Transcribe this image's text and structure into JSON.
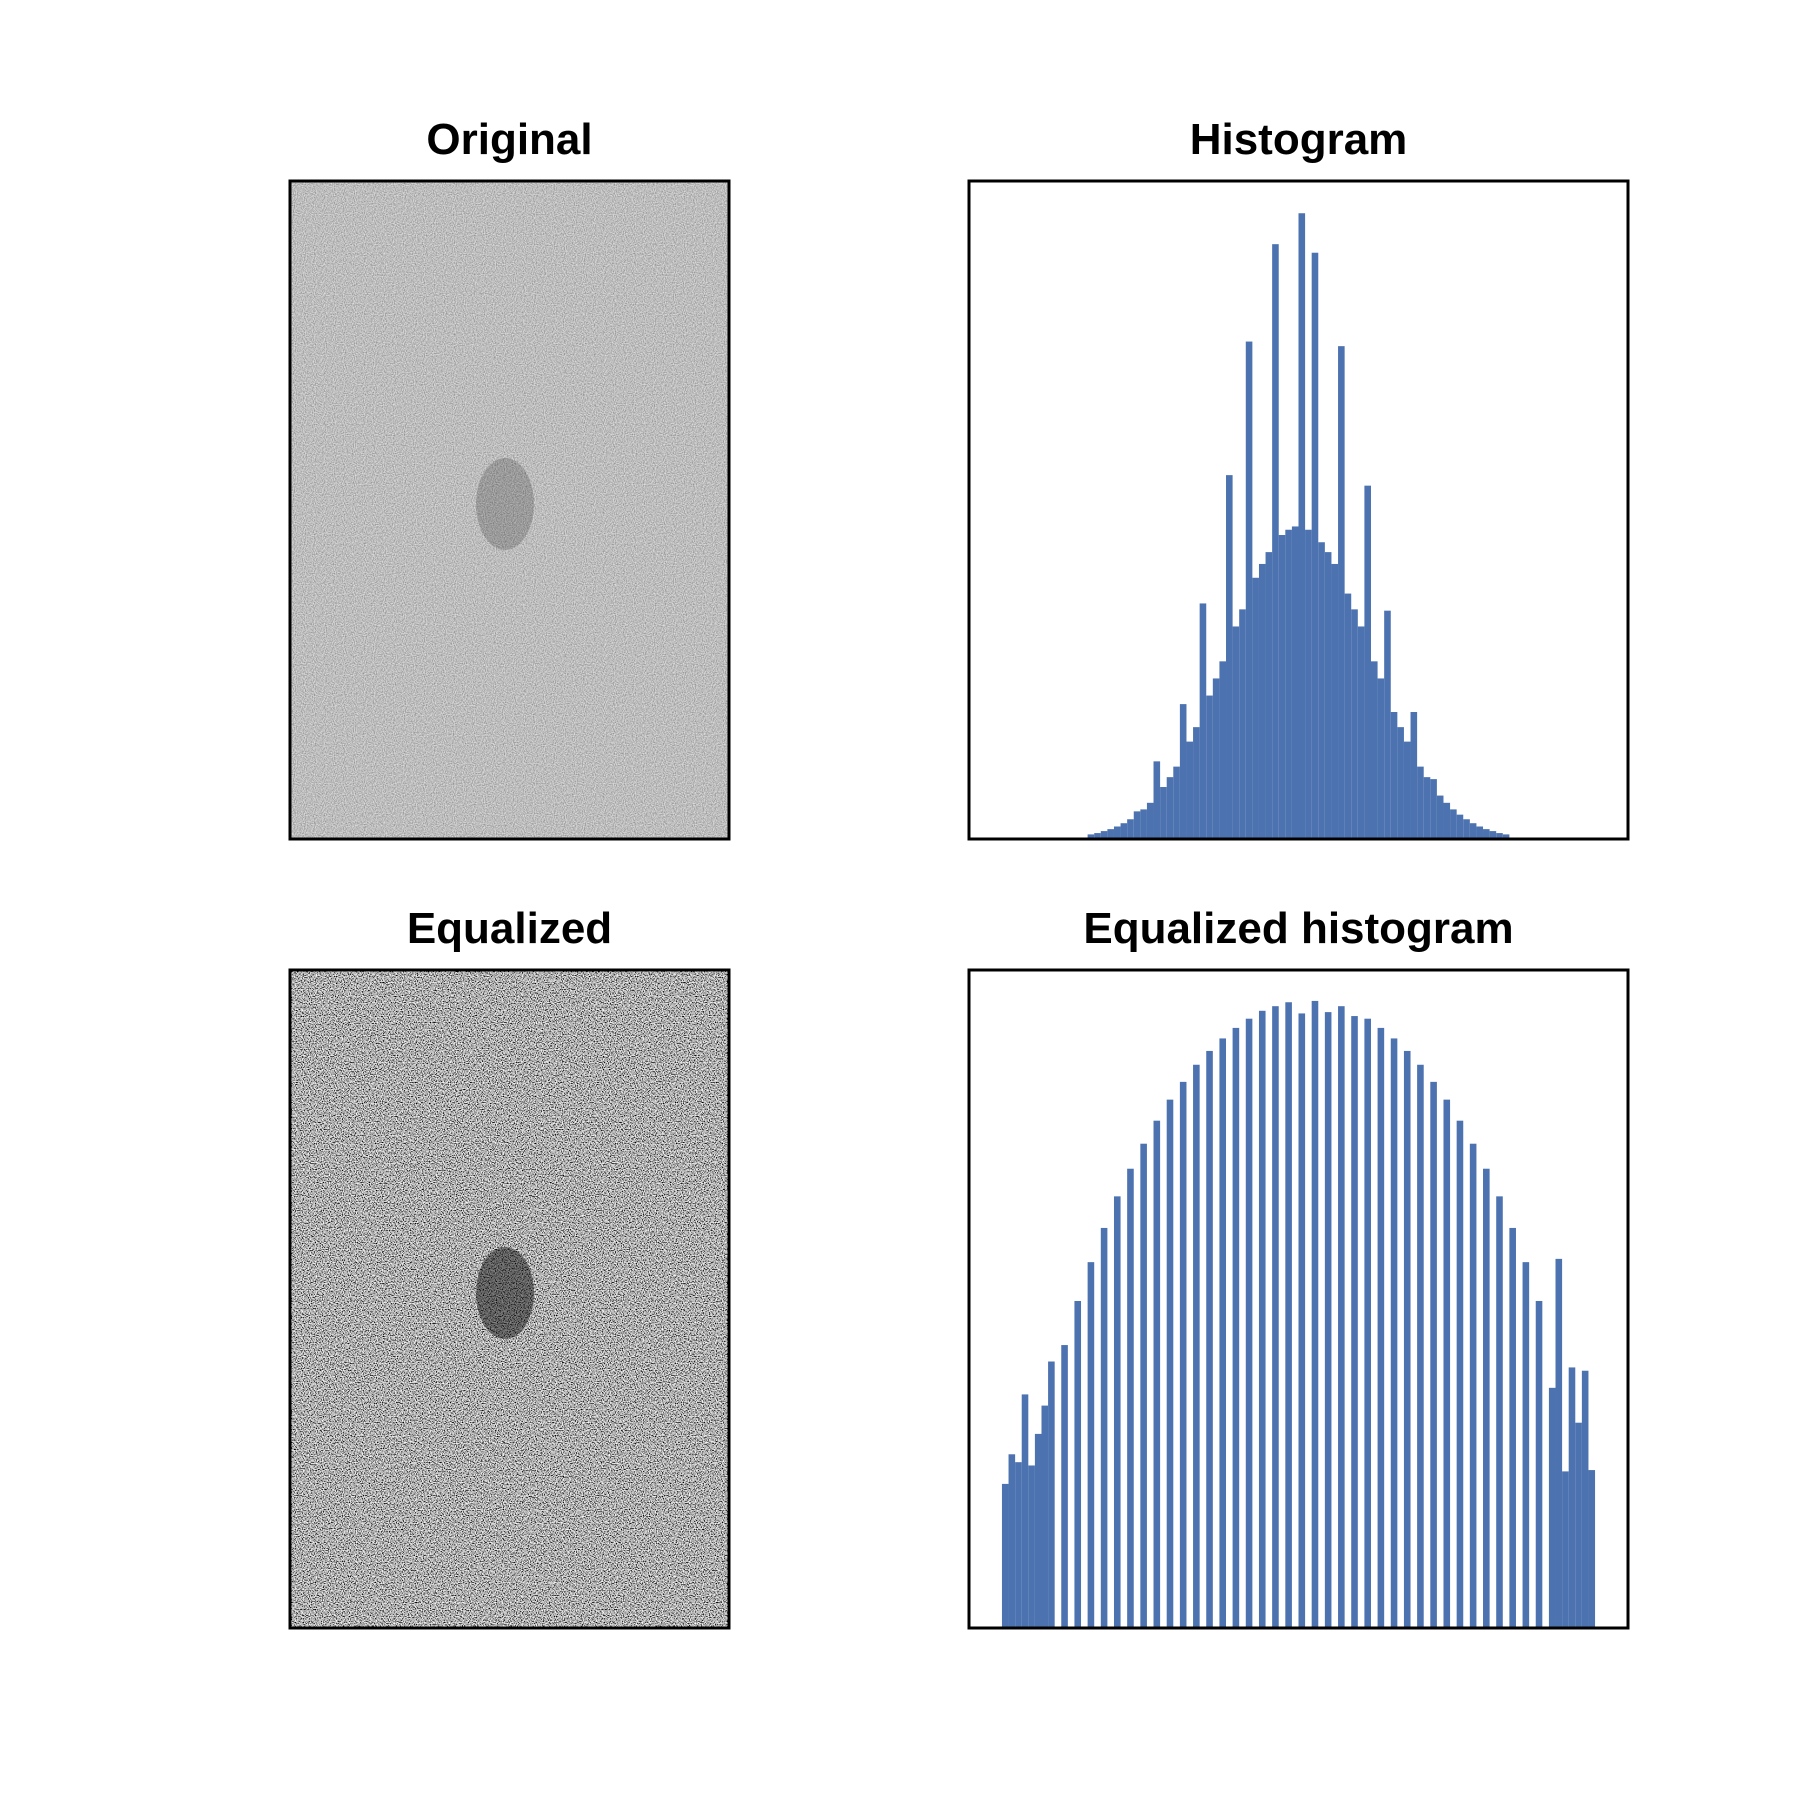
{
  "chart_data": [
    {
      "type": "image",
      "title": "Original",
      "contrast": "low"
    },
    {
      "type": "histogram",
      "title": "Histogram",
      "color": "#4c72b0",
      "xlim": [
        0,
        100
      ],
      "ylim": [
        0,
        100
      ],
      "bins": [
        18,
        19,
        20,
        21,
        22,
        23,
        24,
        25,
        26,
        27,
        28,
        29,
        30,
        31,
        32,
        33,
        34,
        35,
        36,
        37,
        38,
        39,
        40,
        41,
        42,
        43,
        44,
        45,
        46,
        47,
        48,
        49,
        50,
        51,
        52,
        53,
        54,
        55,
        56,
        57,
        58,
        59,
        60,
        61,
        62,
        63,
        64,
        65,
        66,
        67,
        68,
        69,
        70,
        71,
        72,
        73,
        74,
        75,
        76,
        77,
        78,
        79,
        80,
        81,
        82
      ],
      "values": [
        0.7,
        0.9,
        1.2,
        1.5,
        1.9,
        2.4,
        3.0,
        4.2,
        4.5,
        5.5,
        11.8,
        7.9,
        9.4,
        11.0,
        20.5,
        14.8,
        17.0,
        35.8,
        21.8,
        24.4,
        27.0,
        55.3,
        32.3,
        34.9,
        75.6,
        39.7,
        41.8,
        43.6,
        90.4,
        46.2,
        47.0,
        47.5,
        95.1,
        47.0,
        89.1,
        45.1,
        43.6,
        41.8,
        74.9,
        37.3,
        34.9,
        32.3,
        53.7,
        27.0,
        24.4,
        34.7,
        19.3,
        17.0,
        14.8,
        19.3,
        11.0,
        9.4,
        9.1,
        6.6,
        5.5,
        4.5,
        3.7,
        3.0,
        2.4,
        1.9,
        1.5,
        1.2,
        0.9,
        0.7
      ]
    },
    {
      "type": "image",
      "title": "Equalized",
      "contrast": "high"
    },
    {
      "type": "histogram",
      "title": "Equalized histogram",
      "color": "#4c72b0",
      "xlim": [
        0,
        100
      ],
      "ylim": [
        0,
        100
      ],
      "bins": [
        5,
        6,
        7,
        8,
        9,
        10,
        11,
        12,
        13,
        14,
        15,
        16,
        17,
        18,
        19,
        20,
        21,
        22,
        23,
        24,
        25,
        26,
        27,
        28,
        29,
        30,
        31,
        32,
        33,
        34,
        35,
        36,
        37,
        38,
        39,
        40,
        41,
        42,
        43,
        44,
        45,
        46,
        47,
        48,
        49,
        50,
        51,
        52,
        53,
        54,
        55,
        56,
        57,
        58,
        59,
        60,
        61,
        62,
        63,
        64,
        65,
        66,
        67,
        68,
        69,
        70,
        71,
        72,
        73,
        74,
        75,
        76,
        77,
        78,
        79,
        80,
        81,
        82,
        83,
        84,
        85,
        86,
        87,
        88,
        89,
        90,
        91,
        92,
        93,
        94,
        95
      ],
      "values": [
        21.9,
        26.4,
        25.2,
        35.5,
        24.7,
        29.5,
        33.8,
        40.5,
        0,
        43,
        0,
        49.7,
        0,
        55.6,
        0,
        60.8,
        0,
        65.6,
        0,
        69.8,
        0,
        73.6,
        0,
        77.1,
        0,
        80.3,
        0,
        83.0,
        0,
        85.6,
        0,
        87.7,
        0,
        89.6,
        0,
        91.2,
        0,
        92.6,
        0,
        93.8,
        0,
        94.5,
        0,
        95.1,
        0,
        93.4,
        0,
        95.3,
        0,
        93.6,
        0,
        94.5,
        0,
        93.0,
        0,
        92.6,
        0,
        91.2,
        0,
        89.6,
        0,
        87.7,
        0,
        85.6,
        0,
        83.0,
        0,
        80.3,
        0,
        77.1,
        0,
        73.6,
        0,
        69.8,
        0,
        65.6,
        0,
        60.8,
        0,
        55.6,
        0,
        49.7,
        0,
        36.5,
        56.1,
        23.8,
        39.6,
        31.2,
        39.1,
        24.0
      ]
    }
  ]
}
